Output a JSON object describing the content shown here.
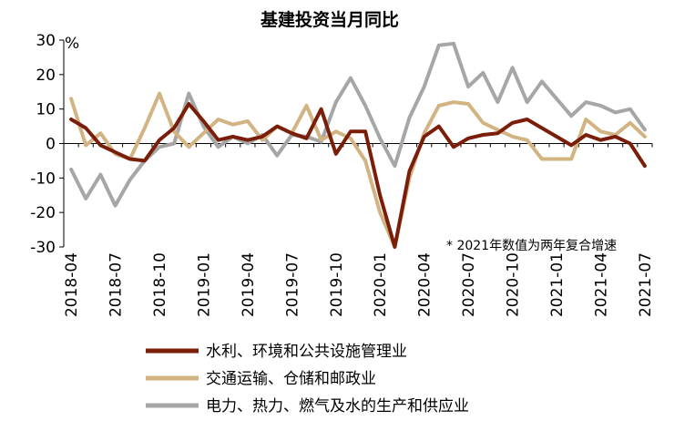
{
  "chart_data": {
    "type": "line",
    "title": "基建投资当月同比",
    "ylabel": "%",
    "xlabel": "",
    "note": "* 2021年数值为两年复合增速",
    "ylim": [
      -30,
      30
    ],
    "yticks": [
      30,
      20,
      10,
      0,
      -10,
      -20,
      -30
    ],
    "xtick_labels": [
      "2018-04",
      "2018-07",
      "2018-10",
      "2019-01",
      "2019-04",
      "2019-07",
      "2019-10",
      "2020-01",
      "2020-04",
      "2020-07",
      "2020-10",
      "2021-01",
      "2021-04",
      "2021-07"
    ],
    "x": [
      "2018-04",
      "2018-05",
      "2018-06",
      "2018-07",
      "2018-08",
      "2018-09",
      "2018-10",
      "2018-11",
      "2018-12",
      "2019-01",
      "2019-02",
      "2019-03",
      "2019-04",
      "2019-05",
      "2019-06",
      "2019-07",
      "2019-08",
      "2019-09",
      "2019-10",
      "2019-11",
      "2019-12",
      "2020-01",
      "2020-02",
      "2020-03",
      "2020-04",
      "2020-05",
      "2020-06",
      "2020-07",
      "2020-08",
      "2020-09",
      "2020-10",
      "2020-11",
      "2020-12",
      "2021-01",
      "2021-02",
      "2021-03",
      "2021-04",
      "2021-05",
      "2021-06",
      "2021-07"
    ],
    "legend_position": "bottom",
    "grid": false,
    "series": [
      {
        "name": "水利、环境和公共设施管理业",
        "color": "#7a1e0a",
        "values": [
          7,
          4.5,
          -0.5,
          -2.5,
          -4.5,
          -5,
          1,
          4.5,
          11.5,
          6.5,
          1,
          2,
          1,
          2,
          5,
          3,
          1.5,
          10,
          -3,
          3.5,
          3.5,
          -15,
          -30,
          -8,
          2,
          5,
          -1,
          1.5,
          2.5,
          3,
          6,
          7,
          4.5,
          2,
          -0.5,
          2.5,
          1,
          2,
          0,
          -6.5
        ]
      },
      {
        "name": "交通运输、仓储和邮政业",
        "color": "#d2b482",
        "values": [
          13,
          -0.5,
          3,
          -3,
          -4.5,
          4.5,
          14.5,
          3.5,
          -1,
          3,
          7,
          5.5,
          6.5,
          1,
          5,
          3,
          11,
          1,
          3.5,
          1.5,
          -5,
          -20,
          -30,
          -10,
          3,
          11,
          12,
          11.5,
          6,
          4,
          2,
          1,
          -4.5,
          -4.5,
          -4.5,
          7,
          3.5,
          2.5,
          6,
          2
        ]
      },
      {
        "name": "电力、热力、燃气及水的生产和供应业",
        "color": "#a6a6a6",
        "values": [
          -7.5,
          -16,
          -9,
          -18,
          -10.5,
          -5,
          -1,
          0,
          14.5,
          5,
          -1,
          2,
          0,
          2.5,
          -3.5,
          2.5,
          2,
          0.5,
          12,
          19,
          11,
          1.5,
          -6.5,
          7.5,
          16.5,
          28.5,
          29,
          16.5,
          20.5,
          12,
          22,
          12,
          18,
          13,
          8,
          12,
          11,
          9,
          10,
          4
        ]
      }
    ]
  }
}
